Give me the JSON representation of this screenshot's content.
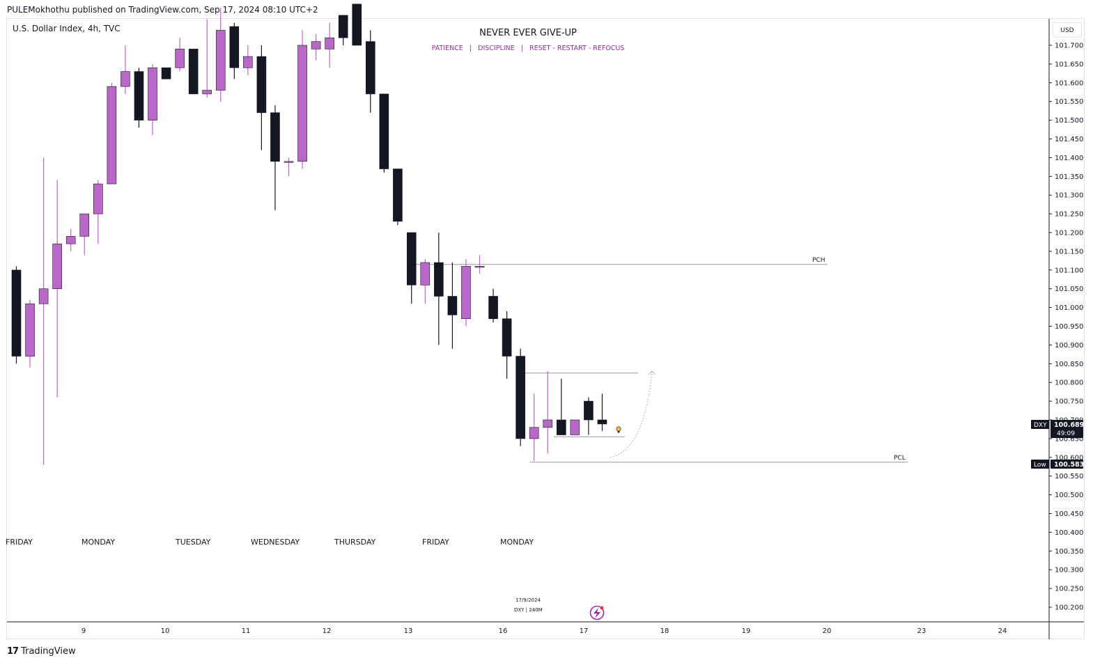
{
  "header": {
    "published_by": "PULEMokhothu published on TradingView.com, Sep 17, 2024 08:10 UTC+2",
    "symbol_line": "U.S. Dollar Index, 4h, TVC",
    "currency": "USD"
  },
  "annotations": {
    "title": "NEVER EVER GIVE-UP",
    "subtitle": "PATIENCE   |   DISCIPLINE   |   RESET - RESTART - REFOCUS",
    "pch_label": "PCH",
    "pcl_label": "PCL",
    "note_date": "17/9/2024",
    "note_symbol": "DXY  |  240M"
  },
  "price_tags": {
    "current_symbol": "DXY",
    "current_price": "100.689",
    "countdown": "49:09",
    "low_label": "Low",
    "low_price": "100.583"
  },
  "footer": {
    "brand": "TradingView"
  },
  "colors": {
    "bull": "#ba68c8",
    "bear": "#131722",
    "accent": "#9c27b0",
    "line": "#9598a1"
  },
  "chart_data": {
    "type": "candlestick",
    "title": "U.S. Dollar Index, 4h, TVC",
    "y_axis": {
      "ticks": [
        "101.700",
        "101.650",
        "101.600",
        "101.550",
        "101.500",
        "101.450",
        "101.400",
        "101.350",
        "101.300",
        "101.250",
        "101.200",
        "101.150",
        "101.100",
        "101.050",
        "101.000",
        "100.950",
        "100.900",
        "100.850",
        "100.800",
        "100.750",
        "100.700",
        "100.650",
        "100.600",
        "100.550",
        "100.500",
        "100.450",
        "100.400",
        "100.350",
        "100.300",
        "100.250",
        "100.200"
      ],
      "range": [
        100.165,
        101.82
      ]
    },
    "x_axis": {
      "date_ticks": [
        "9",
        "10",
        "11",
        "12",
        "13",
        "16",
        "17",
        "18",
        "19",
        "20",
        "23",
        "24"
      ],
      "day_labels": [
        "FRIDAY",
        "MONDAY",
        "TUESDAY",
        "WEDNESDAY",
        "THURSDAY",
        "FRIDAY",
        "MONDAY"
      ]
    },
    "candles": [
      {
        "o": 101.1,
        "h": 101.11,
        "l": 100.85,
        "c": 100.87
      },
      {
        "o": 100.87,
        "h": 101.02,
        "l": 100.84,
        "c": 101.01
      },
      {
        "o": 101.01,
        "h": 101.4,
        "l": 100.58,
        "c": 101.05
      },
      {
        "o": 101.05,
        "h": 101.34,
        "l": 100.76,
        "c": 101.17
      },
      {
        "o": 101.17,
        "h": 101.21,
        "l": 101.15,
        "c": 101.19
      },
      {
        "o": 101.19,
        "h": 101.25,
        "l": 101.14,
        "c": 101.25
      },
      {
        "o": 101.25,
        "h": 101.34,
        "l": 101.17,
        "c": 101.33
      },
      {
        "o": 101.33,
        "h": 101.6,
        "l": 101.33,
        "c": 101.59
      },
      {
        "o": 101.59,
        "h": 101.7,
        "l": 101.57,
        "c": 101.63
      },
      {
        "o": 101.63,
        "h": 101.64,
        "l": 101.48,
        "c": 101.5
      },
      {
        "o": 101.5,
        "h": 101.65,
        "l": 101.46,
        "c": 101.64
      },
      {
        "o": 101.64,
        "h": 101.64,
        "l": 101.61,
        "c": 101.61
      },
      {
        "o": 101.64,
        "h": 101.72,
        "l": 101.63,
        "c": 101.69
      },
      {
        "o": 101.69,
        "h": 101.69,
        "l": 101.57,
        "c": 101.57
      },
      {
        "o": 101.57,
        "h": 101.77,
        "l": 101.56,
        "c": 101.58
      },
      {
        "o": 101.58,
        "h": 101.8,
        "l": 101.55,
        "c": 101.74
      },
      {
        "o": 101.75,
        "h": 101.76,
        "l": 101.61,
        "c": 101.64
      },
      {
        "o": 101.64,
        "h": 101.7,
        "l": 101.62,
        "c": 101.67
      },
      {
        "o": 101.67,
        "h": 101.7,
        "l": 101.42,
        "c": 101.52
      },
      {
        "o": 101.52,
        "h": 101.54,
        "l": 101.26,
        "c": 101.39
      },
      {
        "o": 101.39,
        "h": 101.4,
        "l": 101.35,
        "c": 101.39
      },
      {
        "o": 101.39,
        "h": 101.74,
        "l": 101.37,
        "c": 101.7
      },
      {
        "o": 101.69,
        "h": 101.73,
        "l": 101.66,
        "c": 101.71
      },
      {
        "o": 101.69,
        "h": 101.76,
        "l": 101.64,
        "c": 101.72
      },
      {
        "o": 101.78,
        "h": 101.78,
        "l": 101.7,
        "c": 101.72
      },
      {
        "o": 101.81,
        "h": 101.81,
        "l": 101.7,
        "c": 101.7
      },
      {
        "o": 101.71,
        "h": 101.74,
        "l": 101.52,
        "c": 101.57
      },
      {
        "o": 101.57,
        "h": 101.57,
        "l": 101.36,
        "c": 101.37
      },
      {
        "o": 101.37,
        "h": 101.37,
        "l": 101.22,
        "c": 101.23
      },
      {
        "o": 101.2,
        "h": 101.2,
        "l": 101.01,
        "c": 101.06
      },
      {
        "o": 101.06,
        "h": 101.13,
        "l": 101.01,
        "c": 101.12
      },
      {
        "o": 101.12,
        "h": 101.2,
        "l": 100.9,
        "c": 101.03
      },
      {
        "o": 101.03,
        "h": 101.12,
        "l": 100.89,
        "c": 100.98
      },
      {
        "o": 100.97,
        "h": 101.13,
        "l": 100.95,
        "c": 101.11
      },
      {
        "o": 101.11,
        "h": 101.14,
        "l": 101.09,
        "c": 101.11
      },
      {
        "o": 101.03,
        "h": 101.05,
        "l": 100.96,
        "c": 100.97
      },
      {
        "o": 100.97,
        "h": 100.99,
        "l": 100.81,
        "c": 100.87
      },
      {
        "o": 100.87,
        "h": 100.89,
        "l": 100.63,
        "c": 100.65
      },
      {
        "o": 100.65,
        "h": 100.77,
        "l": 100.59,
        "c": 100.68
      },
      {
        "o": 100.68,
        "h": 100.83,
        "l": 100.61,
        "c": 100.7
      },
      {
        "o": 100.7,
        "h": 100.81,
        "l": 100.66,
        "c": 100.66
      },
      {
        "o": 100.66,
        "h": 100.7,
        "l": 100.66,
        "c": 100.7
      },
      {
        "o": 100.75,
        "h": 100.76,
        "l": 100.66,
        "c": 100.7
      },
      {
        "o": 100.7,
        "h": 100.77,
        "l": 100.67,
        "c": 100.689
      }
    ],
    "levels": [
      {
        "name": "PCH",
        "value": 101.115
      },
      {
        "name": "PCL",
        "value": 100.587
      }
    ],
    "range_box": {
      "top": 100.825,
      "bottom": 100.655
    },
    "projection": {
      "from": 100.6,
      "to": 100.83
    }
  }
}
